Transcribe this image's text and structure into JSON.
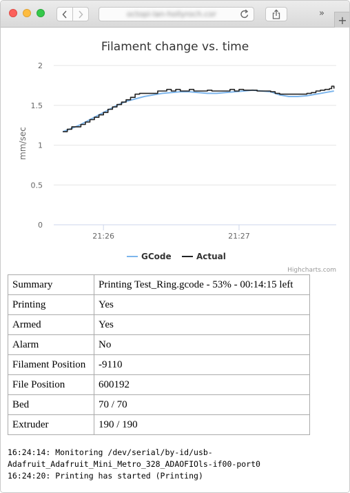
{
  "browser": {
    "url": "octopi-lan-hollyroch.com",
    "buttons": {
      "back": "back",
      "forward": "forward",
      "share": "share",
      "overflow": "»",
      "new_tab": "+"
    },
    "icons": [
      "close-icon",
      "minimize-icon",
      "zoom-icon",
      "chevron-left-icon",
      "chevron-right-icon",
      "reload-icon",
      "share-icon",
      "plus-icon"
    ]
  },
  "colors": {
    "gcode": "#7cb5ec",
    "actual": "#222222",
    "grid": "#e6e6e6",
    "credits": "#999999"
  },
  "chart_data": {
    "type": "line",
    "title": "Filament change vs. time",
    "ylabel": "mm/sec",
    "xlabel": "",
    "ylim": [
      0,
      2
    ],
    "y_ticks": [
      "0",
      "0.5",
      "1",
      "1.5",
      "2"
    ],
    "x_ticks": [
      {
        "label": "21:26",
        "t": 0
      },
      {
        "label": "21:27",
        "t": 60
      }
    ],
    "grid": true,
    "legend_position": "bottom-center",
    "credits": "Highcharts.com",
    "series": [
      {
        "name": "GCode",
        "x": [
          -18,
          -14,
          -10,
          -6,
          -2,
          2,
          6,
          10,
          14,
          18,
          22,
          26,
          30,
          34,
          38,
          42,
          46,
          50,
          54,
          58,
          62,
          66,
          70,
          74,
          78,
          82,
          86,
          90,
          94,
          98,
          102
        ],
        "values": [
          1.17,
          1.21,
          1.26,
          1.32,
          1.38,
          1.44,
          1.5,
          1.55,
          1.58,
          1.61,
          1.63,
          1.65,
          1.66,
          1.67,
          1.67,
          1.66,
          1.65,
          1.65,
          1.66,
          1.67,
          1.68,
          1.69,
          1.68,
          1.67,
          1.63,
          1.61,
          1.61,
          1.62,
          1.64,
          1.66,
          1.68
        ]
      },
      {
        "name": "Actual",
        "x": [
          -18,
          -16,
          -14,
          -12,
          -10,
          -8,
          -6,
          -4,
          -2,
          0,
          2,
          4,
          6,
          8,
          10,
          12,
          14,
          16,
          18,
          20,
          22,
          24,
          26,
          28,
          30,
          32,
          34,
          36,
          38,
          40,
          42,
          44,
          46,
          48,
          50,
          52,
          54,
          56,
          58,
          60,
          62,
          64,
          66,
          68,
          70,
          72,
          74,
          76,
          78,
          80,
          82,
          84,
          86,
          88,
          90,
          92,
          94,
          96,
          98,
          100,
          101,
          102
        ],
        "values": [
          1.17,
          1.2,
          1.23,
          1.23,
          1.26,
          1.29,
          1.32,
          1.35,
          1.38,
          1.41,
          1.45,
          1.48,
          1.51,
          1.54,
          1.57,
          1.6,
          1.64,
          1.65,
          1.65,
          1.65,
          1.65,
          1.68,
          1.68,
          1.7,
          1.68,
          1.7,
          1.68,
          1.68,
          1.7,
          1.68,
          1.68,
          1.68,
          1.69,
          1.68,
          1.68,
          1.68,
          1.68,
          1.7,
          1.68,
          1.7,
          1.69,
          1.69,
          1.69,
          1.68,
          1.68,
          1.68,
          1.67,
          1.65,
          1.64,
          1.64,
          1.64,
          1.64,
          1.64,
          1.64,
          1.65,
          1.66,
          1.68,
          1.69,
          1.7,
          1.71,
          1.74,
          1.71
        ]
      }
    ]
  },
  "status_rows": [
    {
      "label": "Summary",
      "value": "Printing Test_Ring.gcode - 53% - 00:14:15 left"
    },
    {
      "label": "Printing",
      "value": "Yes"
    },
    {
      "label": "Armed",
      "value": "Yes"
    },
    {
      "label": "Alarm",
      "value": "No"
    },
    {
      "label": "Filament Position",
      "value": "-9110"
    },
    {
      "label": "File Position",
      "value": "600192"
    },
    {
      "label": "Bed",
      "value": "70 / 70"
    },
    {
      "label": "Extruder",
      "value": "190 / 190"
    }
  ],
  "log_lines": [
    "16:24:14: Monitoring /dev/serial/by-id/usb-",
    "Adafruit_Adafruit_Mini_Metro_328_ADAOFIOls-if00-port0",
    "16:24:20: Printing has started (Printing)"
  ]
}
